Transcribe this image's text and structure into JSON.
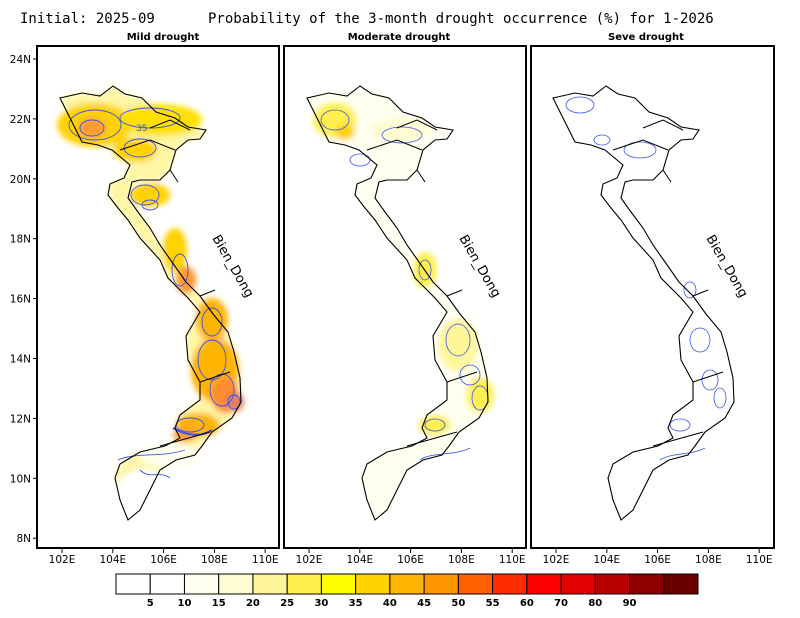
{
  "header": {
    "initial_label": "Initial: 2025-09",
    "title": "Probability of the 3-month drought occurrence (%) for 1-2026"
  },
  "panels": [
    {
      "title": "Mild drought",
      "sea_label": "Bien_Dong",
      "contour_label": "35"
    },
    {
      "title": "Moderate drought",
      "sea_label": "Bien_Dong"
    },
    {
      "title": "Seve drought",
      "sea_label": "Bien_Dong"
    }
  ],
  "axes": {
    "lon_ticks": [
      "102E",
      "104E",
      "106E",
      "108E",
      "110E"
    ],
    "lat_ticks": [
      "24N",
      "22N",
      "20N",
      "18N",
      "16N",
      "14N",
      "12N",
      "10N",
      "8N"
    ]
  },
  "colorbar": {
    "labels": [
      "5",
      "10",
      "15",
      "20",
      "25",
      "30",
      "35",
      "40",
      "45",
      "50",
      "55",
      "60",
      "70",
      "80",
      "90"
    ],
    "colors": [
      "#ffffff",
      "#ffffff",
      "#fffff0",
      "#fffbd2",
      "#fff59a",
      "#fff050",
      "#ffff00",
      "#ffd200",
      "#ffb400",
      "#ff9600",
      "#ff6000",
      "#ff2c00",
      "#ff0000",
      "#e40000",
      "#b80000",
      "#8c0000",
      "#6a0000"
    ]
  },
  "colors": {
    "contour": "#3a55ee",
    "border": "#000000"
  }
}
